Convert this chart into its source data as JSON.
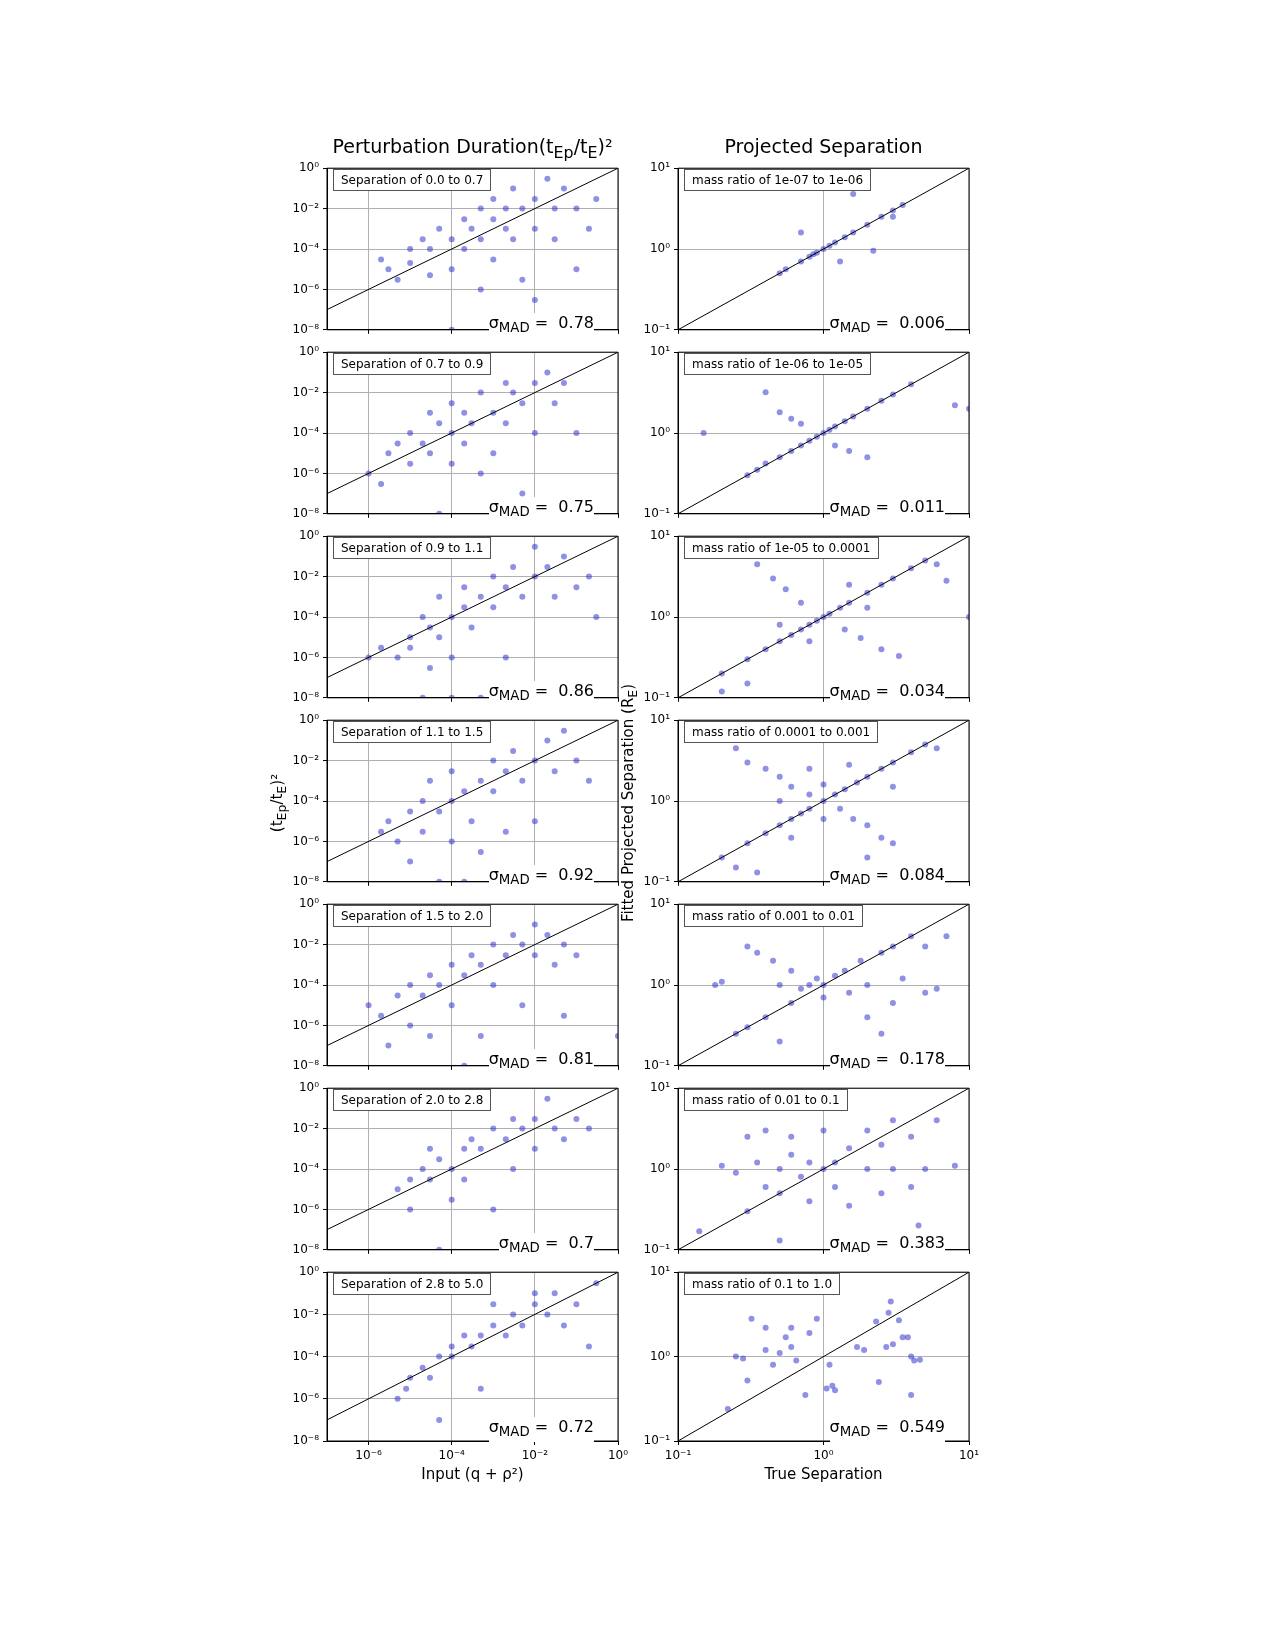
{
  "chart_data": [
    {
      "type": "scatter",
      "title": "Perturbation Duration(t$_{Ep}$/t$_{E}$)²",
      "annotations": [
        "Separation of 0.0 to 0.7",
        "σ$_{MAD}$ =  0.78"
      ],
      "log": "xy",
      "grid": true,
      "marker": "circle",
      "tick_labels": "y",
      "xlim": [
        1e-07,
        1
      ],
      "ylim": [
        1e-08,
        1
      ],
      "xticks": [
        {
          "value": 1e-06,
          "label": null
        },
        {
          "value": 0.0001,
          "label": null
        },
        {
          "value": 0.01,
          "label": null
        },
        {
          "value": 1,
          "label": null
        }
      ],
      "yticks": [
        {
          "value": 1e-08,
          "label": "10⁻⁸"
        },
        {
          "value": 1e-06,
          "label": "10⁻⁶"
        },
        {
          "value": 0.0001,
          "label": "10⁻⁴"
        },
        {
          "value": 0.01,
          "label": "10⁻²"
        },
        {
          "value": 1,
          "label": "10⁰"
        }
      ],
      "series": [
        {
          "type": "scatter",
          "color": "#2222cc",
          "x": [
            2e-06,
            3e-06,
            5e-06,
            1e-05,
            1e-05,
            2e-05,
            3e-05,
            3e-05,
            5e-05,
            0.0001,
            0.0001,
            0.0001,
            0.0002,
            0.0002,
            0.0003,
            0.0005,
            0.0005,
            0.0005,
            0.001,
            0.001,
            0.001,
            0.002,
            0.002,
            0.003,
            0.003,
            0.005,
            0.005,
            0.01,
            0.01,
            0.01,
            0.02,
            0.03,
            0.03,
            0.05,
            0.1,
            0.1,
            0.2,
            0.3
          ],
          "values": [
            3e-05,
            1e-05,
            3e-06,
            0.0001,
            2e-05,
            0.0003,
            0.0001,
            5e-06,
            0.001,
            0.0003,
            1e-05,
            1e-08,
            0.003,
            0.0001,
            0.001,
            0.0003,
            0.01,
            1e-06,
            0.003,
            3e-05,
            0.03,
            0.01,
            0.001,
            0.0003,
            0.1,
            0.01,
            3e-06,
            0.03,
            0.001,
            3e-07,
            0.3,
            0.01,
            0.0003,
            0.1,
            0.01,
            1e-05,
            0.001,
            0.03
          ]
        },
        {
          "type": "line",
          "color": "#000000",
          "marker": "none",
          "x": [
            1e-07,
            1
          ],
          "values": [
            1e-07,
            1
          ]
        }
      ]
    },
    {
      "type": "scatter",
      "title": "Projected Separation",
      "annotations": [
        "mass ratio of 1e-07 to 1e-06",
        "σ$_{MAD}$ =  0.006"
      ],
      "log": "xy",
      "grid": true,
      "marker": "circle",
      "tick_labels": "y",
      "xlim": [
        0.1,
        10
      ],
      "ylim": [
        0.1,
        10
      ],
      "xticks": [
        {
          "value": 0.1,
          "label": null
        },
        {
          "value": 1,
          "label": null
        },
        {
          "value": 10,
          "label": null
        }
      ],
      "yticks": [
        {
          "value": 0.1,
          "label": "10⁻¹"
        },
        {
          "value": 1,
          "label": "10⁰"
        },
        {
          "value": 10,
          "label": "10¹"
        }
      ],
      "series": [
        {
          "type": "scatter",
          "color": "#2222cc",
          "x": [
            0.5,
            0.55,
            0.7,
            0.8,
            0.85,
            0.9,
            1,
            1.1,
            1.2,
            1.4,
            1.6,
            2,
            2.5,
            3,
            3.5,
            0.7,
            1.3,
            2.2,
            1.6,
            3
          ],
          "values": [
            0.5,
            0.56,
            0.7,
            0.8,
            0.86,
            0.9,
            1,
            1.1,
            1.2,
            1.4,
            1.6,
            2,
            2.5,
            3,
            3.5,
            1.6,
            0.7,
            0.95,
            4.8,
            2.5
          ]
        },
        {
          "type": "line",
          "color": "#000000",
          "marker": "none",
          "x": [
            0.1,
            10
          ],
          "values": [
            0.1,
            10
          ]
        }
      ]
    },
    {
      "type": "scatter",
      "annotations": [
        "Separation of 0.7 to 0.9",
        "σ$_{MAD}$ =  0.75"
      ],
      "log": "xy",
      "grid": true,
      "marker": "circle",
      "tick_labels": "y",
      "xlim": [
        1e-07,
        1
      ],
      "ylim": [
        1e-08,
        1
      ],
      "xticks": [
        {
          "value": 1e-06,
          "label": null
        },
        {
          "value": 0.0001,
          "label": null
        },
        {
          "value": 0.01,
          "label": null
        },
        {
          "value": 1,
          "label": null
        }
      ],
      "yticks": [
        {
          "value": 1e-08,
          "label": "10⁻⁸"
        },
        {
          "value": 1e-06,
          "label": "10⁻⁶"
        },
        {
          "value": 0.0001,
          "label": "10⁻⁴"
        },
        {
          "value": 0.01,
          "label": "10⁻²"
        },
        {
          "value": 1,
          "label": "10⁰"
        }
      ],
      "series": [
        {
          "type": "scatter",
          "color": "#2222cc",
          "x": [
            1e-06,
            2e-06,
            3e-06,
            5e-06,
            1e-05,
            1e-05,
            2e-05,
            3e-05,
            3e-05,
            5e-05,
            5e-05,
            0.0001,
            0.0001,
            0.0001,
            0.0002,
            0.0002,
            0.0003,
            0.0005,
            0.0005,
            0.001,
            0.001,
            0.002,
            0.002,
            0.003,
            0.005,
            0.005,
            0.01,
            0.01,
            0.02,
            0.03,
            0.05,
            0.1
          ],
          "values": [
            1e-06,
            3e-07,
            1e-05,
            3e-05,
            3e-06,
            0.0001,
            3e-05,
            0.001,
            1e-05,
            0.0003,
            1e-08,
            0.0001,
            3e-06,
            0.003,
            0.001,
            3e-05,
            0.0003,
            0.01,
            1e-06,
            0.001,
            1e-05,
            0.03,
            0.0003,
            0.01,
            0.003,
            1e-07,
            0.03,
            0.0001,
            0.1,
            0.003,
            0.03,
            0.0001
          ]
        },
        {
          "type": "line",
          "color": "#000000",
          "marker": "none",
          "x": [
            1e-07,
            1
          ],
          "values": [
            1e-07,
            1
          ]
        }
      ]
    },
    {
      "type": "scatter",
      "annotations": [
        "mass ratio of 1e-06 to 1e-05",
        "σ$_{MAD}$ =  0.011"
      ],
      "log": "xy",
      "grid": true,
      "marker": "circle",
      "tick_labels": "y",
      "xlim": [
        0.1,
        10
      ],
      "ylim": [
        0.1,
        10
      ],
      "xticks": [
        {
          "value": 0.1,
          "label": null
        },
        {
          "value": 1,
          "label": null
        },
        {
          "value": 10,
          "label": null
        }
      ],
      "yticks": [
        {
          "value": 0.1,
          "label": "10⁻¹"
        },
        {
          "value": 1,
          "label": "10⁰"
        },
        {
          "value": 10,
          "label": "10¹"
        }
      ],
      "series": [
        {
          "type": "scatter",
          "color": "#2222cc",
          "x": [
            0.15,
            0.3,
            0.35,
            0.4,
            0.5,
            0.6,
            0.7,
            0.8,
            0.9,
            1,
            1.1,
            1.2,
            1.4,
            1.6,
            2,
            2.5,
            3,
            4,
            0.4,
            0.5,
            0.6,
            0.7,
            1.2,
            1.5,
            2,
            8,
            10
          ],
          "values": [
            1,
            0.3,
            0.35,
            0.42,
            0.5,
            0.6,
            0.7,
            0.8,
            0.9,
            1,
            1.1,
            1.2,
            1.4,
            1.6,
            2,
            2.5,
            3,
            4,
            3.2,
            1.8,
            1.5,
            1.3,
            0.7,
            0.6,
            0.5,
            2.2,
            2
          ]
        },
        {
          "type": "line",
          "color": "#000000",
          "marker": "none",
          "x": [
            0.1,
            10
          ],
          "values": [
            0.1,
            10
          ]
        }
      ]
    },
    {
      "type": "scatter",
      "annotations": [
        "Separation of 0.9 to 1.1",
        "σ$_{MAD}$ =  0.86"
      ],
      "log": "xy",
      "grid": true,
      "marker": "circle",
      "tick_labels": "y",
      "xlim": [
        1e-07,
        1
      ],
      "ylim": [
        1e-08,
        1
      ],
      "xticks": [
        {
          "value": 1e-06,
          "label": null
        },
        {
          "value": 0.0001,
          "label": null
        },
        {
          "value": 0.01,
          "label": null
        },
        {
          "value": 1,
          "label": null
        }
      ],
      "yticks": [
        {
          "value": 1e-08,
          "label": "10⁻⁸"
        },
        {
          "value": 1e-06,
          "label": "10⁻⁶"
        },
        {
          "value": 0.0001,
          "label": "10⁻⁴"
        },
        {
          "value": 0.01,
          "label": "10⁻²"
        },
        {
          "value": 1,
          "label": "10⁰"
        }
      ],
      "series": [
        {
          "type": "scatter",
          "color": "#2222cc",
          "x": [
            1e-06,
            2e-06,
            5e-06,
            1e-05,
            1e-05,
            2e-05,
            2e-05,
            3e-05,
            3e-05,
            5e-05,
            5e-05,
            0.0001,
            0.0001,
            0.0001,
            0.0002,
            0.0002,
            0.0003,
            0.0005,
            0.0005,
            0.001,
            0.001,
            0.002,
            0.002,
            0.003,
            0.005,
            0.01,
            0.01,
            0.02,
            0.03,
            0.05,
            0.1,
            0.2,
            0.3
          ],
          "values": [
            1e-06,
            3e-06,
            1e-06,
            3e-06,
            1e-05,
            0.0001,
            1e-08,
            3e-05,
            3e-07,
            0.001,
            1e-05,
            0.0001,
            1e-06,
            1e-08,
            0.0003,
            0.003,
            3e-05,
            0.001,
            1e-08,
            0.0003,
            0.01,
            0.003,
            1e-06,
            0.03,
            0.001,
            0.01,
            0.3,
            0.03,
            0.001,
            0.1,
            0.003,
            0.01,
            0.0001
          ]
        },
        {
          "type": "line",
          "color": "#000000",
          "marker": "none",
          "x": [
            1e-07,
            1
          ],
          "values": [
            1e-07,
            1
          ]
        }
      ]
    },
    {
      "type": "scatter",
      "annotations": [
        "mass ratio of 1e-05 to 0.0001",
        "σ$_{MAD}$ =  0.034"
      ],
      "log": "xy",
      "grid": true,
      "marker": "circle",
      "tick_labels": "y",
      "xlim": [
        0.1,
        10
      ],
      "ylim": [
        0.1,
        10
      ],
      "xticks": [
        {
          "value": 0.1,
          "label": null
        },
        {
          "value": 1,
          "label": null
        },
        {
          "value": 10,
          "label": null
        }
      ],
      "yticks": [
        {
          "value": 0.1,
          "label": "10⁻¹"
        },
        {
          "value": 1,
          "label": "10⁰"
        },
        {
          "value": 10,
          "label": "10¹"
        }
      ],
      "series": [
        {
          "type": "scatter",
          "color": "#2222cc",
          "x": [
            0.2,
            0.3,
            0.4,
            0.5,
            0.6,
            0.7,
            0.8,
            0.9,
            1,
            1.1,
            1.3,
            1.5,
            2,
            2.5,
            3,
            4,
            5,
            0.35,
            0.45,
            0.55,
            0.7,
            1.4,
            1.8,
            2.5,
            3.3,
            0.3,
            0.2,
            6,
            7,
            10,
            0.5,
            1.5,
            2,
            0.8
          ],
          "values": [
            0.2,
            0.3,
            0.4,
            0.5,
            0.6,
            0.7,
            0.8,
            0.9,
            1,
            1.1,
            1.3,
            1.5,
            2,
            2.5,
            3,
            4,
            5,
            4.5,
            3,
            2.2,
            1.5,
            0.7,
            0.55,
            0.4,
            0.33,
            0.15,
            0.12,
            4.5,
            2.8,
            1,
            0.8,
            2.5,
            1.3,
            0.5
          ]
        },
        {
          "type": "line",
          "color": "#000000",
          "marker": "none",
          "x": [
            0.1,
            10
          ],
          "values": [
            0.1,
            10
          ]
        }
      ]
    },
    {
      "type": "scatter",
      "ylabel": "(t$_{Ep}$/t$_{E}$)²",
      "annotations": [
        "Separation of 1.1 to 1.5",
        "σ$_{MAD}$ =  0.92"
      ],
      "log": "xy",
      "grid": true,
      "marker": "circle",
      "tick_labels": "y",
      "xlim": [
        1e-07,
        1
      ],
      "ylim": [
        1e-08,
        1
      ],
      "xticks": [
        {
          "value": 1e-06,
          "label": null
        },
        {
          "value": 0.0001,
          "label": null
        },
        {
          "value": 0.01,
          "label": null
        },
        {
          "value": 1,
          "label": null
        }
      ],
      "yticks": [
        {
          "value": 1e-08,
          "label": "10⁻⁸"
        },
        {
          "value": 1e-06,
          "label": "10⁻⁶"
        },
        {
          "value": 0.0001,
          "label": "10⁻⁴"
        },
        {
          "value": 0.01,
          "label": "10⁻²"
        },
        {
          "value": 1,
          "label": "10⁰"
        }
      ],
      "series": [
        {
          "type": "scatter",
          "color": "#2222cc",
          "x": [
            2e-06,
            3e-06,
            5e-06,
            1e-05,
            1e-05,
            2e-05,
            2e-05,
            3e-05,
            5e-05,
            5e-05,
            0.0001,
            0.0001,
            0.0001,
            0.0002,
            0.0002,
            0.0003,
            0.0005,
            0.0005,
            0.001,
            0.001,
            0.002,
            0.002,
            0.003,
            0.005,
            0.01,
            0.01,
            0.02,
            0.03,
            0.05,
            0.1,
            0.2
          ],
          "values": [
            3e-06,
            1e-05,
            1e-06,
            3e-05,
            1e-07,
            0.0001,
            3e-06,
            0.001,
            3e-05,
            1e-08,
            0.0001,
            1e-06,
            0.003,
            0.0003,
            1e-08,
            1e-05,
            0.001,
            3e-07,
            0.0003,
            0.01,
            0.003,
            3e-06,
            0.03,
            0.001,
            0.01,
            1e-05,
            0.1,
            0.003,
            0.3,
            0.01,
            0.001
          ]
        },
        {
          "type": "line",
          "color": "#000000",
          "marker": "none",
          "x": [
            1e-07,
            1
          ],
          "values": [
            1e-07,
            1
          ]
        }
      ]
    },
    {
      "type": "scatter",
      "ylabel": "Fitted Projected Separation (R$_{E}$)",
      "annotations": [
        "mass ratio of 0.0001 to 0.001",
        "σ$_{MAD}$ =  0.084"
      ],
      "log": "xy",
      "grid": true,
      "marker": "circle",
      "tick_labels": "y",
      "xlim": [
        0.1,
        10
      ],
      "ylim": [
        0.1,
        10
      ],
      "xticks": [
        {
          "value": 0.1,
          "label": null
        },
        {
          "value": 1,
          "label": null
        },
        {
          "value": 10,
          "label": null
        }
      ],
      "yticks": [
        {
          "value": 0.1,
          "label": "10⁻¹"
        },
        {
          "value": 1,
          "label": "10⁰"
        },
        {
          "value": 10,
          "label": "10¹"
        }
      ],
      "series": [
        {
          "type": "scatter",
          "color": "#2222cc",
          "x": [
            0.25,
            0.3,
            0.4,
            0.5,
            0.6,
            0.8,
            1.3,
            1.6,
            2,
            2.5,
            3,
            0.2,
            0.25,
            0.3,
            0.35,
            0.4,
            0.5,
            0.6,
            0.7,
            0.8,
            1,
            1.2,
            1.4,
            1.7,
            2,
            2.5,
            3,
            4,
            5,
            6,
            0.5,
            1,
            1.5,
            3,
            2,
            0.8,
            0.6,
            1
          ],
          "values": [
            4.5,
            3,
            2.5,
            2,
            1.5,
            1.2,
            0.8,
            0.6,
            0.5,
            0.35,
            0.3,
            0.2,
            0.15,
            0.3,
            0.13,
            0.4,
            0.5,
            0.6,
            0.7,
            0.8,
            1,
            1.2,
            1.4,
            1.7,
            2,
            2.5,
            3,
            4,
            5,
            4.5,
            1,
            0.6,
            2.8,
            1.5,
            0.2,
            2.5,
            0.35,
            1.6
          ]
        },
        {
          "type": "line",
          "color": "#000000",
          "marker": "none",
          "x": [
            0.1,
            10
          ],
          "values": [
            0.1,
            10
          ]
        }
      ]
    },
    {
      "type": "scatter",
      "annotations": [
        "Separation of 1.5 to 2.0",
        "σ$_{MAD}$ =  0.81"
      ],
      "log": "xy",
      "grid": true,
      "marker": "circle",
      "tick_labels": "y",
      "xlim": [
        1e-07,
        1
      ],
      "ylim": [
        1e-08,
        1
      ],
      "xticks": [
        {
          "value": 1e-06,
          "label": null
        },
        {
          "value": 0.0001,
          "label": null
        },
        {
          "value": 0.01,
          "label": null
        },
        {
          "value": 1,
          "label": null
        }
      ],
      "yticks": [
        {
          "value": 1e-08,
          "label": "10⁻⁸"
        },
        {
          "value": 1e-06,
          "label": "10⁻⁶"
        },
        {
          "value": 0.0001,
          "label": "10⁻⁴"
        },
        {
          "value": 0.01,
          "label": "10⁻²"
        },
        {
          "value": 1,
          "label": "10⁰"
        }
      ],
      "series": [
        {
          "type": "scatter",
          "color": "#2222cc",
          "x": [
            1e-06,
            2e-06,
            3e-06,
            5e-06,
            1e-05,
            1e-05,
            2e-05,
            3e-05,
            3e-05,
            5e-05,
            0.0001,
            0.0001,
            0.0002,
            0.0002,
            0.0003,
            0.0005,
            0.0005,
            0.001,
            0.001,
            0.002,
            0.003,
            0.005,
            0.005,
            0.01,
            0.01,
            0.02,
            0.03,
            0.05,
            0.05,
            0.1,
            1
          ],
          "values": [
            1e-05,
            3e-06,
            1e-07,
            3e-05,
            1e-06,
            0.0001,
            3e-05,
            0.0003,
            3e-07,
            0.0001,
            0.001,
            1e-05,
            0.0003,
            1e-08,
            0.003,
            0.001,
            3e-07,
            0.01,
            0.0001,
            0.003,
            0.03,
            0.01,
            1e-05,
            0.003,
            0.1,
            0.03,
            0.001,
            0.01,
            3e-06,
            0.003,
            3e-07
          ]
        },
        {
          "type": "line",
          "color": "#000000",
          "marker": "none",
          "x": [
            1e-07,
            1
          ],
          "values": [
            1e-07,
            1
          ]
        }
      ]
    },
    {
      "type": "scatter",
      "annotations": [
        "mass ratio of 0.001 to 0.01",
        "σ$_{MAD}$ =  0.178"
      ],
      "log": "xy",
      "grid": true,
      "marker": "circle",
      "tick_labels": "y",
      "xlim": [
        0.1,
        10
      ],
      "ylim": [
        0.1,
        10
      ],
      "xticks": [
        {
          "value": 0.1,
          "label": null
        },
        {
          "value": 1,
          "label": null
        },
        {
          "value": 10,
          "label": null
        }
      ],
      "yticks": [
        {
          "value": 0.1,
          "label": "10⁻¹"
        },
        {
          "value": 1,
          "label": "10⁰"
        },
        {
          "value": 10,
          "label": "10¹"
        }
      ],
      "series": [
        {
          "type": "scatter",
          "color": "#2222cc",
          "x": [
            0.18,
            0.2,
            0.25,
            0.3,
            0.3,
            0.35,
            0.4,
            0.45,
            0.5,
            0.5,
            0.6,
            0.6,
            0.7,
            0.8,
            0.9,
            1,
            1,
            1.2,
            1.4,
            1.5,
            1.8,
            2,
            2,
            2.5,
            2.5,
            3,
            3,
            3.5,
            4,
            5,
            5,
            6,
            7
          ],
          "values": [
            1,
            1.1,
            0.25,
            0.3,
            3,
            2.5,
            0.4,
            2,
            1,
            0.2,
            1.5,
            0.6,
            0.9,
            1,
            1.2,
            1,
            0.7,
            1.3,
            1.5,
            0.8,
            2,
            1,
            0.4,
            2.5,
            0.25,
            3,
            0.6,
            1.2,
            4,
            3,
            0.8,
            0.9,
            4
          ]
        },
        {
          "type": "line",
          "color": "#000000",
          "marker": "none",
          "x": [
            0.1,
            10
          ],
          "values": [
            0.1,
            10
          ]
        }
      ]
    },
    {
      "type": "scatter",
      "annotations": [
        "Separation of 2.0 to 2.8",
        "σ$_{MAD}$ =  0.7"
      ],
      "log": "xy",
      "grid": true,
      "marker": "circle",
      "tick_labels": "y",
      "xlim": [
        1e-07,
        1
      ],
      "ylim": [
        1e-08,
        1
      ],
      "xticks": [
        {
          "value": 1e-06,
          "label": null
        },
        {
          "value": 0.0001,
          "label": null
        },
        {
          "value": 0.01,
          "label": null
        },
        {
          "value": 1,
          "label": null
        }
      ],
      "yticks": [
        {
          "value": 1e-08,
          "label": "10⁻⁸"
        },
        {
          "value": 1e-06,
          "label": "10⁻⁶"
        },
        {
          "value": 0.0001,
          "label": "10⁻⁴"
        },
        {
          "value": 0.01,
          "label": "10⁻²"
        },
        {
          "value": 1,
          "label": "10⁰"
        }
      ],
      "series": [
        {
          "type": "scatter",
          "color": "#2222cc",
          "x": [
            5e-06,
            1e-05,
            1e-05,
            2e-05,
            3e-05,
            3e-05,
            5e-05,
            5e-05,
            0.0001,
            0.0001,
            0.0002,
            0.0002,
            0.0003,
            0.0005,
            0.001,
            0.001,
            0.002,
            0.003,
            0.003,
            0.005,
            0.01,
            0.01,
            0.02,
            0.03,
            0.05,
            0.1,
            0.2
          ],
          "values": [
            1e-05,
            3e-05,
            1e-06,
            0.0001,
            3e-05,
            0.001,
            0.0003,
            1e-08,
            0.0001,
            3e-06,
            0.001,
            3e-05,
            0.003,
            0.001,
            0.01,
            1e-06,
            0.003,
            0.03,
            0.0001,
            0.01,
            0.03,
            0.001,
            0.3,
            0.01,
            0.003,
            0.03,
            0.01
          ]
        },
        {
          "type": "line",
          "color": "#000000",
          "marker": "none",
          "x": [
            1e-07,
            1
          ],
          "values": [
            1e-07,
            1
          ]
        }
      ]
    },
    {
      "type": "scatter",
      "annotations": [
        "mass ratio of 0.01 to 0.1",
        "σ$_{MAD}$ =  0.383"
      ],
      "log": "xy",
      "grid": true,
      "marker": "circle",
      "tick_labels": "y",
      "xlim": [
        0.1,
        10
      ],
      "ylim": [
        0.1,
        10
      ],
      "xticks": [
        {
          "value": 0.1,
          "label": null
        },
        {
          "value": 1,
          "label": null
        },
        {
          "value": 10,
          "label": null
        }
      ],
      "yticks": [
        {
          "value": 0.1,
          "label": "10⁻¹"
        },
        {
          "value": 1,
          "label": "10⁰"
        },
        {
          "value": 10,
          "label": "10¹"
        }
      ],
      "series": [
        {
          "type": "scatter",
          "color": "#2222cc",
          "x": [
            0.14,
            0.2,
            0.25,
            0.3,
            0.3,
            0.35,
            0.4,
            0.4,
            0.5,
            0.5,
            0.6,
            0.6,
            0.7,
            0.8,
            0.8,
            1,
            1,
            1.2,
            1.2,
            1.5,
            1.5,
            2,
            2,
            2.5,
            2.5,
            3,
            3,
            4,
            4,
            4.5,
            5,
            6,
            8,
            0.5
          ],
          "values": [
            0.17,
            1.1,
            0.9,
            2.5,
            0.3,
            1.2,
            3,
            0.6,
            1,
            0.5,
            1.5,
            2.5,
            0.8,
            1.2,
            0.4,
            1,
            3,
            0.6,
            1.2,
            0.35,
            1.8,
            1,
            3,
            0.5,
            2,
            1,
            4,
            0.6,
            2.5,
            0.2,
            1,
            4,
            1.1,
            0.13
          ]
        },
        {
          "type": "line",
          "color": "#000000",
          "marker": "none",
          "x": [
            0.1,
            10
          ],
          "values": [
            0.1,
            10
          ]
        }
      ]
    },
    {
      "type": "scatter",
      "xlabel": "Input (q + ρ²)",
      "annotations": [
        "Separation of 2.8 to 5.0",
        "σ$_{MAD}$ =  0.72"
      ],
      "log": "xy",
      "grid": true,
      "marker": "circle",
      "xlim": [
        1e-07,
        1
      ],
      "ylim": [
        1e-08,
        1
      ],
      "xticks": [
        {
          "value": 1e-06,
          "label": "10⁻⁶"
        },
        {
          "value": 0.0001,
          "label": "10⁻⁴"
        },
        {
          "value": 0.01,
          "label": "10⁻²"
        },
        {
          "value": 1,
          "label": "10⁰"
        }
      ],
      "yticks": [
        {
          "value": 1e-08,
          "label": "10⁻⁸"
        },
        {
          "value": 1e-06,
          "label": "10⁻⁶"
        },
        {
          "value": 0.0001,
          "label": "10⁻⁴"
        },
        {
          "value": 0.01,
          "label": "10⁻²"
        },
        {
          "value": 1,
          "label": "10⁰"
        }
      ],
      "series": [
        {
          "type": "scatter",
          "color": "#2222cc",
          "x": [
            5e-06,
            8e-06,
            1e-05,
            2e-05,
            3e-05,
            5e-05,
            5e-05,
            0.0001,
            0.0001,
            0.0002,
            0.0003,
            0.0005,
            0.0005,
            0.001,
            0.001,
            0.002,
            0.003,
            0.005,
            0.01,
            0.01,
            0.02,
            0.03,
            0.05,
            0.1,
            0.2,
            0.3
          ],
          "values": [
            1e-06,
            3e-06,
            1e-05,
            3e-05,
            1e-05,
            0.0001,
            1e-07,
            0.0003,
            0.0001,
            0.001,
            0.0003,
            0.001,
            3e-06,
            0.003,
            0.03,
            0.001,
            0.01,
            0.003,
            0.03,
            0.1,
            0.01,
            0.1,
            0.003,
            0.03,
            0.0003,
            0.3
          ]
        },
        {
          "type": "line",
          "color": "#000000",
          "marker": "none",
          "x": [
            1e-07,
            1
          ],
          "values": [
            1e-07,
            1
          ]
        }
      ]
    },
    {
      "type": "scatter",
      "xlabel": "True Separation",
      "annotations": [
        "mass ratio of 0.1 to 1.0",
        "σ$_{MAD}$ =  0.549"
      ],
      "log": "xy",
      "grid": true,
      "marker": "circle",
      "xlim": [
        0.1,
        10
      ],
      "ylim": [
        0.1,
        10
      ],
      "xticks": [
        {
          "value": 0.1,
          "label": "10⁻¹"
        },
        {
          "value": 1,
          "label": "10⁰"
        },
        {
          "value": 10,
          "label": "10¹"
        }
      ],
      "yticks": [
        {
          "value": 0.1,
          "label": "10⁻¹"
        },
        {
          "value": 1,
          "label": "10⁰"
        },
        {
          "value": 10,
          "label": "10¹"
        }
      ],
      "series": [
        {
          "type": "scatter",
          "color": "#2222cc",
          "x": [
            0.22,
            0.25,
            0.28,
            0.3,
            0.32,
            0.4,
            0.4,
            0.45,
            0.5,
            0.55,
            0.6,
            0.6,
            0.65,
            0.75,
            0.8,
            0.9,
            1.1,
            1.05,
            1.15,
            1.2,
            1.7,
            1.9,
            2.3,
            2.4,
            2.7,
            2.8,
            2.9,
            3,
            3.3,
            3.5,
            3.8,
            4,
            4.2,
            4.6,
            4
          ],
          "values": [
            0.24,
            1,
            0.95,
            0.52,
            2.8,
            1.2,
            2.2,
            0.8,
            1.1,
            1.7,
            1.3,
            2.2,
            0.9,
            0.35,
            1.9,
            2.8,
            0.8,
            0.42,
            0.45,
            0.4,
            1.3,
            1.2,
            2.6,
            0.5,
            1.3,
            3.3,
            4.5,
            1.4,
            2.7,
            1.7,
            1.7,
            1,
            0.9,
            0.92,
            0.35
          ]
        },
        {
          "type": "line",
          "color": "#000000",
          "marker": "none",
          "x": [
            0.1,
            10
          ],
          "values": [
            0.1,
            10
          ]
        }
      ]
    }
  ]
}
